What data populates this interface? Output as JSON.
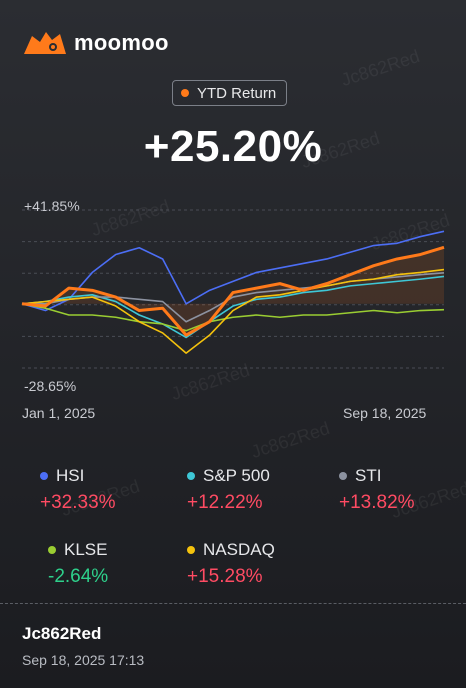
{
  "header": {
    "brand": "moomoo"
  },
  "summary": {
    "label": "YTD Return",
    "label_dot_color": "#ff7a1a",
    "value": "+25.20%"
  },
  "chart_axis": {
    "y_top": "+41.85%",
    "y_bottom": "-28.65%",
    "x_start": "Jan 1, 2025",
    "x_end": "Sep 18, 2025"
  },
  "chart_data": {
    "type": "line",
    "x": [
      "2025-01-01",
      "2025-01-15",
      "2025-01-31",
      "2025-02-15",
      "2025-02-28",
      "2025-03-15",
      "2025-03-31",
      "2025-04-07",
      "2025-04-15",
      "2025-04-30",
      "2025-05-15",
      "2025-05-31",
      "2025-06-15",
      "2025-06-30",
      "2025-07-15",
      "2025-07-31",
      "2025-08-15",
      "2025-08-31",
      "2025-09-18"
    ],
    "ylim": [
      -28.65,
      41.85
    ],
    "series": [
      {
        "name": "HSI",
        "color": "#4c6ef5",
        "values": [
          0,
          -3,
          2,
          14,
          22,
          25,
          20,
          0,
          6,
          10,
          14,
          16,
          18,
          20,
          23,
          26,
          27,
          30,
          32.33
        ]
      },
      {
        "name": "S&P 500",
        "color": "#3ec7d6",
        "values": [
          0,
          1,
          3,
          4,
          1,
          -5,
          -9,
          -15,
          -8,
          -1,
          2,
          3,
          5,
          6,
          8,
          9,
          10,
          11,
          12.22
        ]
      },
      {
        "name": "STI",
        "color": "#8c92a0",
        "values": [
          0,
          0,
          2,
          3,
          3,
          2,
          1,
          -8,
          -3,
          3,
          5,
          6,
          7,
          8,
          10,
          11,
          12,
          13,
          13.82
        ]
      },
      {
        "name": "KLSE",
        "color": "#9acd32",
        "values": [
          0,
          -2,
          -5,
          -5,
          -6,
          -8,
          -9,
          -12,
          -8,
          -6,
          -5,
          -6,
          -5,
          -5,
          -4,
          -3,
          -4,
          -3,
          -2.64
        ]
      },
      {
        "name": "NASDAQ",
        "color": "#f4c20d",
        "values": [
          0,
          1,
          2,
          3,
          -1,
          -8,
          -13,
          -22,
          -14,
          -3,
          3,
          4,
          6,
          8,
          10,
          11,
          13,
          14,
          15.28
        ]
      },
      {
        "name": "YTD Return",
        "color": "#ff7a1a",
        "values": [
          0,
          -1,
          7,
          6,
          3,
          -3,
          -2,
          -14,
          -8,
          5,
          7,
          9,
          6,
          9,
          13,
          17,
          20,
          22,
          25.2
        ]
      }
    ]
  },
  "legend": [
    {
      "name": "HSI",
      "value": "+32.33%",
      "color": "#4c6ef5",
      "sign": "pos"
    },
    {
      "name": "S&P 500",
      "value": "+12.22%",
      "color": "#3ec7d6",
      "sign": "pos"
    },
    {
      "name": "STI",
      "value": "+13.82%",
      "color": "#8c92a0",
      "sign": "pos"
    },
    {
      "name": "KLSE",
      "value": "-2.64%",
      "color": "#9acd32",
      "sign": "neg"
    },
    {
      "name": "NASDAQ",
      "value": "+15.28%",
      "color": "#f4c20d",
      "sign": "pos"
    }
  ],
  "footer": {
    "user": "Jc862Red",
    "timestamp": "Sep 18, 2025 17:13"
  },
  "watermark_text": "Jc862Red",
  "icons": {
    "logo": "moomoo-bull-logo-icon"
  }
}
